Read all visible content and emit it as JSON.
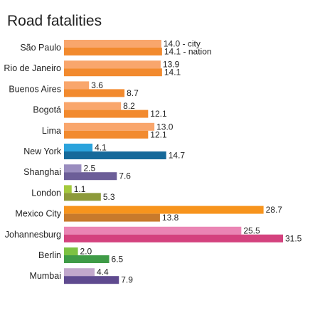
{
  "chart_data": {
    "type": "bar",
    "orientation": "horizontal",
    "title": "Road fatalities",
    "categories": [
      "São Paulo",
      "Rio de Janeiro",
      "Buenos Aires",
      "Bogotá",
      "Lima",
      "New York",
      "Shanghai",
      "London",
      "Mexico City",
      "Johannesburg",
      "Berlin",
      "Mumbai"
    ],
    "series": [
      {
        "values": [
          14.0,
          13.9,
          3.6,
          8.2,
          13.0,
          4.1,
          2.5,
          1.1,
          28.7,
          25.5,
          2.0,
          4.4
        ]
      },
      {
        "values": [
          14.1,
          14.1,
          8.7,
          12.1,
          12.1,
          14.7,
          7.6,
          5.3,
          13.8,
          31.5,
          6.5,
          7.9
        ]
      }
    ],
    "value_labels": [
      [
        "14.0 - city",
        "13.9",
        "3.6",
        "8.2",
        "13.0",
        "4.1",
        "2.5",
        "1.1",
        "28.7",
        "25.5",
        "2.0",
        "4.4"
      ],
      [
        "14.1 - nation",
        "14.1",
        "8.7",
        "12.1",
        "12.1",
        "14.7",
        "7.6",
        "5.3",
        "13.8",
        "31.5",
        "6.5",
        "7.9"
      ]
    ],
    "bar_colors": [
      [
        "#f9a66c",
        "#f28a2e"
      ],
      [
        "#f9a66c",
        "#f28a2e"
      ],
      [
        "#f9a66c",
        "#f28a2e"
      ],
      [
        "#f9a66c",
        "#f28a2e"
      ],
      [
        "#f9a66c",
        "#f28a2e"
      ],
      [
        "#2ba3dc",
        "#16699a"
      ],
      [
        "#9a8dbf",
        "#6c5e98"
      ],
      [
        "#a4c93c",
        "#8d9a3a"
      ],
      [
        "#f7941d",
        "#c87a2c"
      ],
      [
        "#ea85b4",
        "#d4427e"
      ],
      [
        "#7cc242",
        "#3f9b47"
      ],
      [
        "#c2a8cc",
        "#5f4a8f"
      ]
    ],
    "xlim": [
      0,
      31.5
    ],
    "grid": false,
    "legend": "none"
  }
}
